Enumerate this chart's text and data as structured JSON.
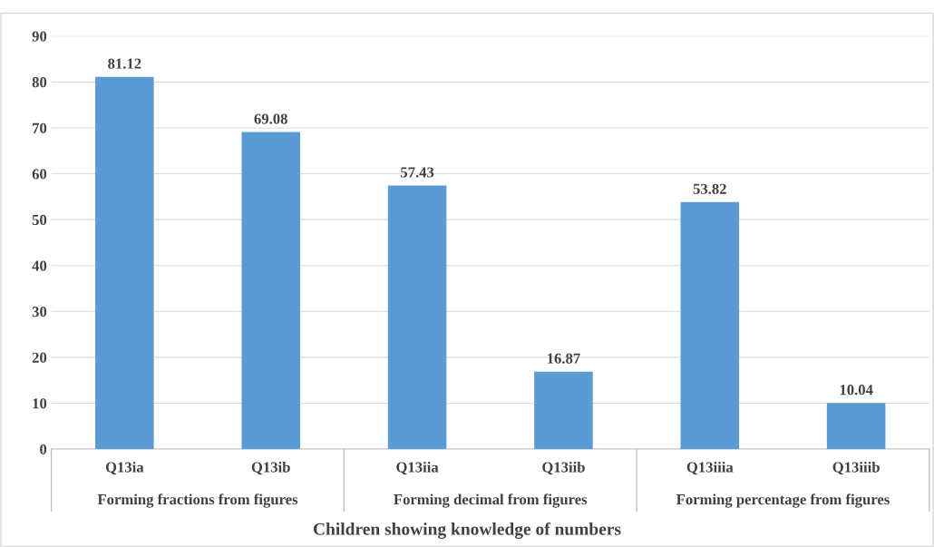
{
  "chart_data": {
    "type": "bar",
    "xlabel": "Children showing knowledge of numbers",
    "categories": [
      "Q13ia",
      "Q13ib",
      "Q13iia",
      "Q13iib",
      "Q13iiia",
      "Q13iiib"
    ],
    "values": [
      81.12,
      69.08,
      57.43,
      16.87,
      53.82,
      10.04
    ],
    "color": "#5b9bd5",
    "data_labels": true,
    "ylim": [
      0,
      90
    ],
    "yticks": [
      0,
      10,
      20,
      30,
      40,
      50,
      60,
      70,
      80,
      90
    ],
    "grid": "y",
    "annotations": [
      "Forming fractions from figures",
      "Forming decimal from figures",
      "Forming percentage from figures"
    ]
  }
}
